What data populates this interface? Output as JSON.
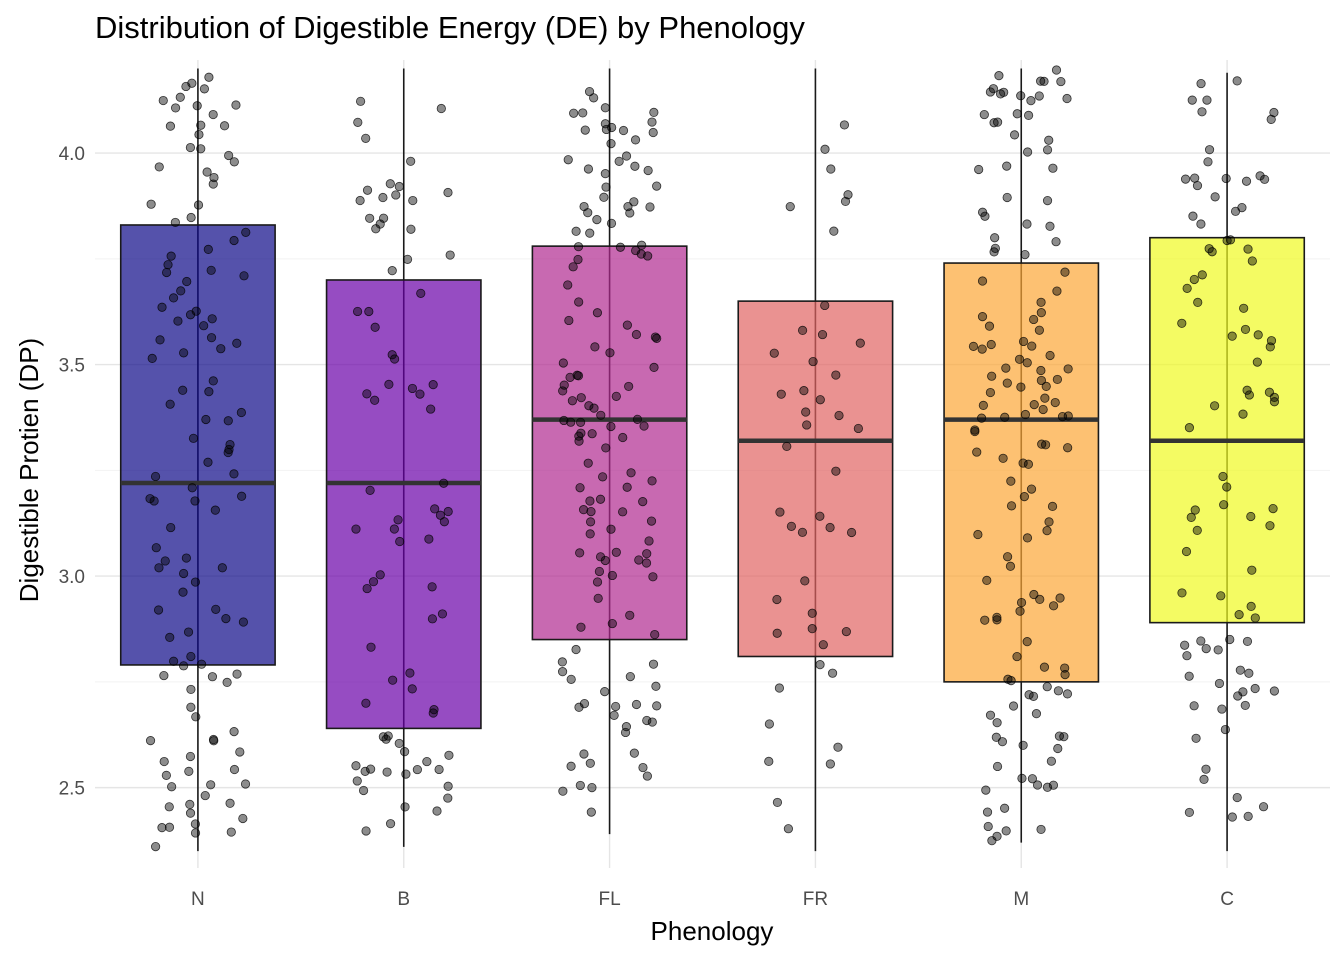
{
  "chart_data": {
    "type": "box",
    "title": "Distribution of Digestible Energy (DE) by Phenology",
    "xlabel": "Phenology",
    "ylabel": "Digestible Protien (DP)",
    "categories": [
      "N",
      "B",
      "FL",
      "FR",
      "M",
      "C"
    ],
    "ylim": [
      2.31,
      4.22
    ],
    "yticks": [
      2.5,
      3.0,
      3.5,
      4.0
    ],
    "ytick_labels": [
      "2.5",
      "3.0",
      "3.5",
      "4.0"
    ],
    "grid": true,
    "legend": "none",
    "colors": [
      "#0D0887",
      "#6A00A8",
      "#B12A90",
      "#E16462",
      "#FCA636",
      "#F0F921"
    ],
    "box_opacity": 0.7,
    "series": [
      {
        "category": "N",
        "min": 2.35,
        "q1": 2.79,
        "median": 3.22,
        "q3": 3.83,
        "max": 4.2,
        "n": 120
      },
      {
        "category": "B",
        "min": 2.36,
        "q1": 2.64,
        "median": 3.22,
        "q3": 3.7,
        "max": 4.2,
        "n": 80
      },
      {
        "category": "FL",
        "min": 2.39,
        "q1": 2.85,
        "median": 3.37,
        "q3": 3.78,
        "max": 4.2,
        "n": 140
      },
      {
        "category": "FR",
        "min": 2.35,
        "q1": 2.81,
        "median": 3.32,
        "q3": 3.65,
        "max": 4.2,
        "n": 45
      },
      {
        "category": "M",
        "min": 2.37,
        "q1": 2.75,
        "median": 3.37,
        "q3": 3.74,
        "max": 4.2,
        "n": 140
      },
      {
        "category": "C",
        "min": 2.35,
        "q1": 2.89,
        "median": 3.32,
        "q3": 3.8,
        "max": 4.19,
        "n": 90
      }
    ]
  }
}
